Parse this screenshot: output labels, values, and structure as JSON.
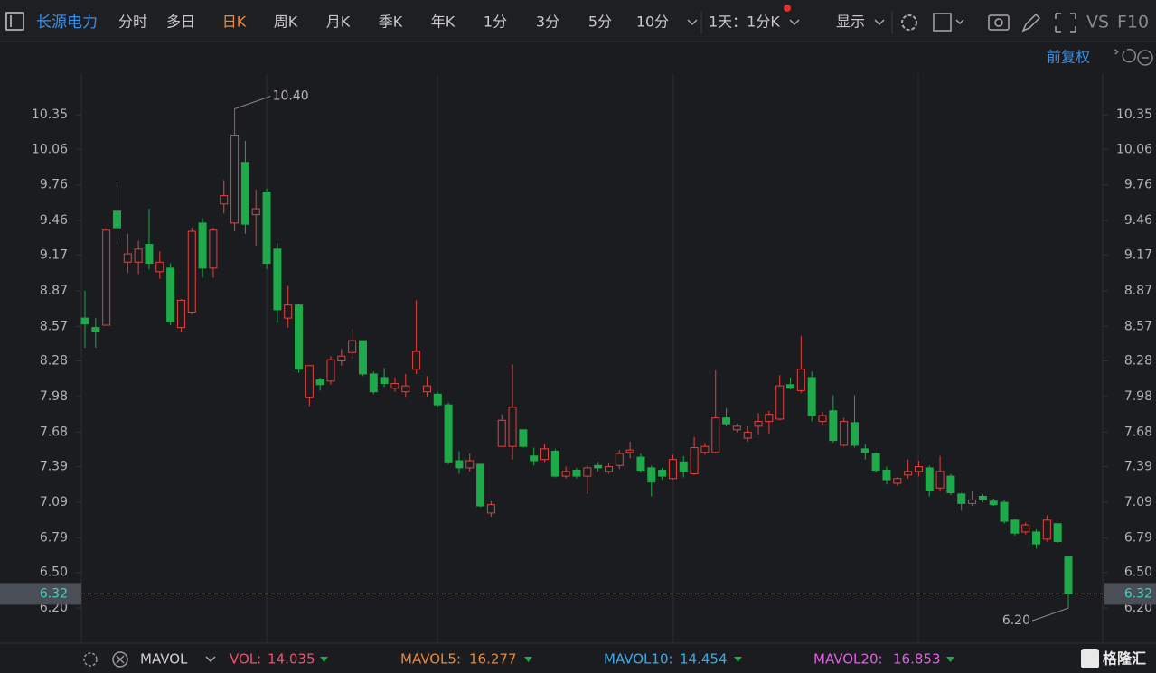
{
  "toolbar": {
    "stock": "长源电力",
    "tabs": [
      "分时",
      "多日",
      "日K",
      "周K",
      "月K",
      "季K",
      "年K",
      "1分",
      "3分",
      "5分",
      "10分"
    ],
    "period": "1天：1分K",
    "display": "显示",
    "vs": "VS",
    "f10": "F10",
    "adjust": "前复权"
  },
  "chart_data": {
    "type": "candlestick",
    "up_color": "#e5413d",
    "down_color": "#1fa94a",
    "ylim": [
      5.92,
      10.67
    ],
    "yticks": [
      10.35,
      10.06,
      9.76,
      9.46,
      9.17,
      8.87,
      8.57,
      8.28,
      7.98,
      7.68,
      7.39,
      7.09,
      6.79,
      {
        "value": 6.5,
        "label": "6.50"
      },
      {
        "value": 6.2,
        "label": "6.20"
      }
    ],
    "open": [
      8.64,
      8.56,
      8.58,
      9.54,
      9.11,
      9.11,
      9.26,
      9.03,
      9.06,
      8.56,
      8.69,
      9.44,
      9.06,
      9.6,
      9.44,
      9.95,
      9.51,
      9.7,
      9.22,
      8.64,
      8.75,
      7.97,
      8.12,
      8.11,
      8.28,
      8.35,
      8.45,
      8.17,
      8.14,
      8.05,
      8.02,
      8.21,
      8.02,
      8.0,
      7.91,
      7.44,
      7.38,
      7.41,
      7.0,
      7.56,
      7.56,
      7.7,
      7.48,
      7.45,
      7.52,
      7.31,
      7.36,
      7.31,
      7.4,
      7.35,
      7.4,
      7.51,
      7.47,
      7.38,
      7.36,
      7.29,
      7.43,
      7.33,
      7.51,
      7.51,
      7.8,
      7.7,
      7.63,
      7.73,
      7.77,
      7.79,
      8.08,
      8.03,
      8.14,
      7.77,
      7.86,
      7.57,
      7.76,
      7.54,
      7.5,
      7.36,
      7.25,
      7.32,
      7.35,
      7.38,
      7.21,
      7.31,
      7.16,
      7.08,
      7.14,
      7.1,
      7.09,
      6.94,
      6.84,
      6.84,
      6.78,
      6.91,
      6.63
    ],
    "high": [
      8.87,
      8.64,
      9.38,
      9.79,
      9.35,
      9.29,
      9.56,
      9.2,
      9.1,
      8.8,
      9.4,
      9.48,
      9.4,
      9.8,
      10.4,
      10.13,
      9.72,
      9.73,
      9.27,
      8.91,
      8.76,
      8.24,
      8.14,
      8.32,
      8.38,
      8.55,
      8.45,
      8.19,
      8.22,
      8.14,
      8.17,
      8.79,
      8.15,
      8.02,
      7.93,
      7.52,
      7.5,
      7.41,
      7.1,
      7.83,
      8.25,
      7.7,
      7.55,
      7.58,
      7.54,
      7.39,
      7.38,
      7.4,
      7.43,
      7.42,
      7.53,
      7.6,
      7.5,
      7.4,
      7.38,
      7.49,
      7.48,
      7.64,
      7.59,
      8.2,
      7.88,
      7.75,
      7.73,
      7.84,
      7.86,
      8.16,
      8.14,
      8.49,
      8.19,
      7.85,
      7.99,
      7.8,
      7.99,
      7.58,
      7.51,
      7.39,
      7.3,
      7.45,
      7.44,
      7.4,
      7.48,
      7.33,
      7.17,
      7.18,
      7.16,
      7.12,
      7.11,
      6.95,
      6.92,
      6.86,
      6.98,
      6.91,
      6.63
    ],
    "low": [
      8.39,
      8.39,
      8.58,
      9.26,
      9.02,
      9.01,
      9.05,
      8.97,
      8.58,
      8.52,
      8.67,
      8.98,
      8.98,
      9.52,
      9.37,
      9.35,
      9.25,
      9.05,
      8.6,
      8.56,
      8.18,
      7.9,
      8.03,
      8.08,
      8.24,
      8.3,
      8.15,
      8.0,
      8.06,
      8.02,
      7.97,
      8.17,
      7.98,
      7.89,
      7.41,
      7.33,
      7.35,
      7.05,
      6.97,
      7.56,
      7.45,
      7.55,
      7.4,
      7.43,
      7.3,
      7.29,
      7.29,
      7.16,
      7.35,
      7.33,
      7.37,
      7.46,
      7.34,
      7.14,
      7.28,
      7.28,
      7.3,
      7.32,
      7.49,
      7.5,
      7.73,
      7.68,
      7.6,
      7.66,
      7.67,
      7.78,
      8.04,
      8.01,
      7.77,
      7.74,
      7.59,
      7.56,
      7.55,
      7.45,
      7.34,
      7.24,
      7.23,
      7.29,
      7.31,
      7.14,
      7.18,
      7.15,
      7.02,
      7.06,
      7.09,
      7.06,
      6.91,
      6.81,
      6.82,
      6.7,
      6.76,
      6.75,
      6.2
    ],
    "close": [
      8.59,
      8.53,
      9.38,
      9.4,
      9.18,
      9.22,
      9.1,
      9.11,
      8.61,
      8.79,
      9.37,
      9.06,
      9.38,
      9.67,
      10.18,
      9.43,
      9.56,
      9.1,
      8.71,
      8.75,
      8.21,
      8.24,
      8.08,
      8.29,
      8.32,
      8.45,
      8.17,
      8.02,
      8.09,
      8.09,
      8.07,
      8.36,
      8.07,
      7.91,
      7.43,
      7.38,
      7.44,
      7.06,
      7.07,
      7.78,
      7.89,
      7.56,
      7.44,
      7.54,
      7.31,
      7.35,
      7.31,
      7.38,
      7.38,
      7.39,
      7.5,
      7.53,
      7.36,
      7.26,
      7.31,
      7.45,
      7.35,
      7.55,
      7.56,
      7.8,
      7.75,
      7.73,
      7.68,
      7.77,
      7.83,
      8.07,
      8.05,
      8.21,
      7.82,
      7.82,
      7.61,
      7.77,
      7.57,
      7.51,
      7.36,
      7.28,
      7.29,
      7.35,
      7.39,
      7.19,
      7.35,
      7.17,
      7.08,
      7.11,
      7.11,
      7.07,
      6.93,
      6.83,
      6.9,
      6.74,
      6.94,
      6.76,
      6.32
    ],
    "high_label": {
      "value": 10.4,
      "label": "10.40"
    },
    "low_label": {
      "value": 6.2,
      "label": "6.20"
    },
    "last": 6.32,
    "last_color": "#e8893a"
  },
  "indicators": {
    "name": "MAVOL",
    "items": [
      {
        "name": "VOL:",
        "value": 14.035,
        "color": "#f0506e"
      },
      {
        "name": "MAVOL5:",
        "value": 16.277,
        "color": "#e8893a"
      },
      {
        "name": "MAVOL10:",
        "value": 14.454,
        "color": "#3da8e8"
      },
      {
        "name": "MAVOL20:",
        "value": 16.853,
        "color": "#e060e0"
      }
    ]
  },
  "watermark": "格隆汇"
}
